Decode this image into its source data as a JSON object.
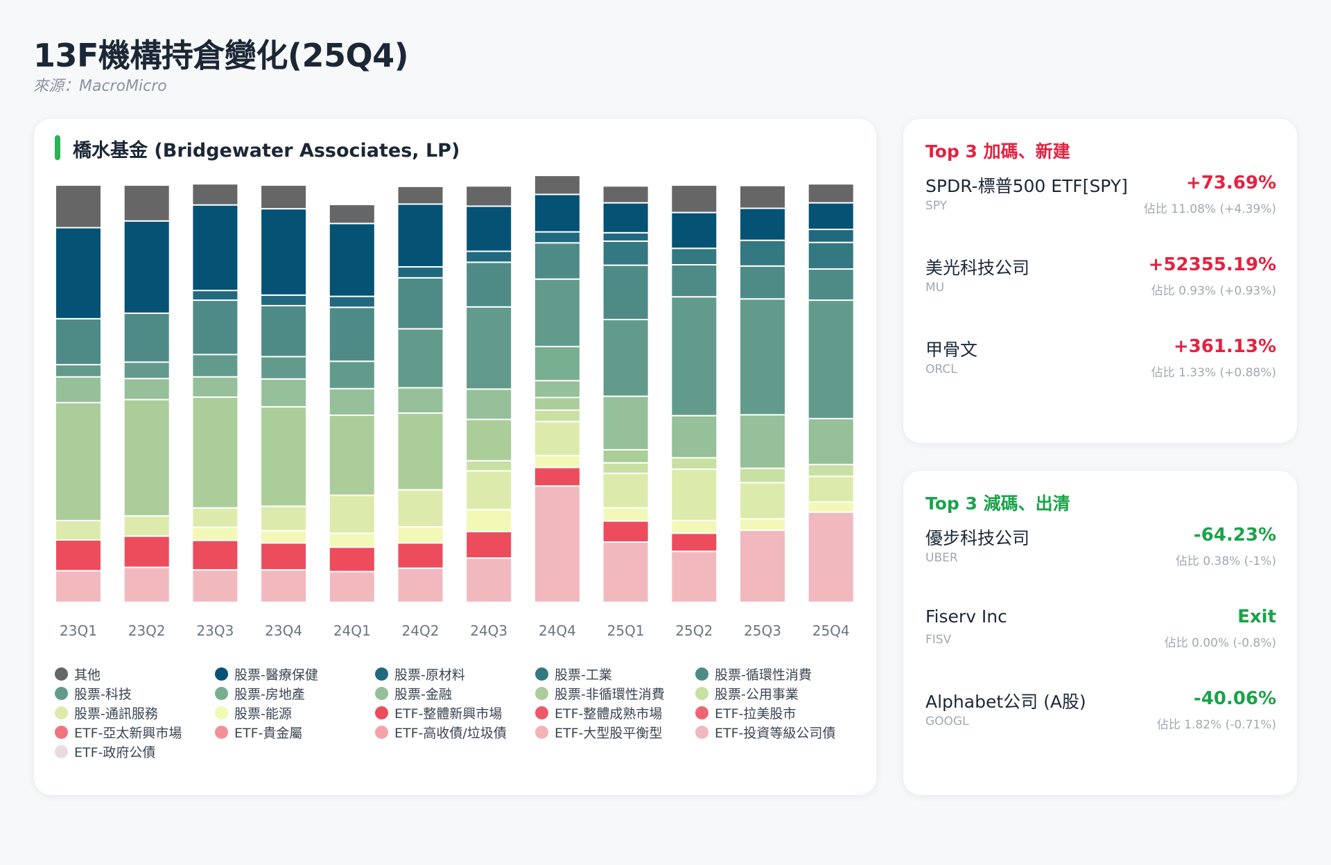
{
  "page": {
    "title": "13F機構持倉變化(25Q4)",
    "source": "來源：MacroMicro"
  },
  "chart_card": {
    "title": "橋水基金 (Bridgewater Associates, LP)",
    "accent_color": "#2bb35a"
  },
  "chart_data": {
    "type": "bar",
    "stacked": true,
    "normalized_to": 100,
    "categories": [
      "23Q1",
      "23Q2",
      "23Q3",
      "23Q4",
      "24Q1",
      "24Q2",
      "24Q3",
      "24Q4",
      "25Q1",
      "25Q2",
      "25Q3",
      "25Q4"
    ],
    "ylim": [
      0,
      100
    ],
    "grid": false,
    "legend_position": "bottom",
    "series": [
      {
        "name": "ETF-政府公債",
        "color": "#eadcde",
        "values": [
          0,
          0,
          0,
          0,
          0,
          0,
          0,
          0,
          0,
          0,
          0,
          0
        ]
      },
      {
        "name": "ETF-投資等級公司債",
        "color": "#f1b9be",
        "values": [
          7.5,
          8.3,
          7.7,
          7.7,
          7.3,
          8.1,
          10.5,
          27.6,
          14.3,
          12.1,
          17.1,
          21.4
        ]
      },
      {
        "name": "ETF-大型股平衡型",
        "color": "#f2b3b8",
        "values": [
          0,
          0,
          0,
          0,
          0,
          0,
          0,
          0,
          0,
          0,
          0,
          0
        ]
      },
      {
        "name": "ETF-高收債/垃圾債",
        "color": "#f4a3ab",
        "values": [
          0,
          0,
          0,
          0,
          0,
          0,
          0,
          0,
          0,
          0,
          0,
          0
        ]
      },
      {
        "name": "ETF-貴金屬",
        "color": "#f29098",
        "values": [
          0,
          0,
          0,
          0,
          0,
          0,
          0,
          0,
          0,
          0,
          0,
          0
        ]
      },
      {
        "name": "ETF-亞太新興市場",
        "color": "#f07480",
        "values": [
          0,
          0,
          0,
          0,
          0,
          0,
          0,
          0,
          0,
          0,
          0,
          0
        ]
      },
      {
        "name": "ETF-拉美股市",
        "color": "#ef6472",
        "values": [
          0,
          0,
          0,
          0,
          0,
          0,
          0,
          0,
          0,
          0,
          0,
          0
        ]
      },
      {
        "name": "ETF-整體成熟市場",
        "color": "#ed5966",
        "values": [
          0,
          0,
          0,
          0,
          0,
          0,
          0,
          0,
          0,
          0,
          0,
          0
        ]
      },
      {
        "name": "ETF-整體新興市場",
        "color": "#ec4c5c",
        "values": [
          7.3,
          7.4,
          7.0,
          6.4,
          5.8,
          6.0,
          6.3,
          4.4,
          5.0,
          4.3,
          0,
          0
        ]
      },
      {
        "name": "股票-能源",
        "color": "#f2f8b6",
        "values": [
          0,
          0,
          3.1,
          2.9,
          3.3,
          3.8,
          5.2,
          2.8,
          3.1,
          3.0,
          2.7,
          2.4
        ]
      },
      {
        "name": "股票-通訊服務",
        "color": "#dcebab",
        "values": [
          4.6,
          4.8,
          4.6,
          5.8,
          9.0,
          8.8,
          9.2,
          8.1,
          8.2,
          12.2,
          8.6,
          6.1
        ]
      },
      {
        "name": "股票-公用事業",
        "color": "#c8e0a2",
        "values": [
          0,
          0,
          0,
          0,
          0,
          0,
          2.4,
          2.7,
          2.5,
          2.7,
          3.4,
          2.8
        ]
      },
      {
        "name": "股票-非循環性消費",
        "color": "#abcd9a",
        "values": [
          28.0,
          27.6,
          26.3,
          23.6,
          19.0,
          18.2,
          9.8,
          3.0,
          3.1,
          0,
          0,
          0
        ]
      },
      {
        "name": "股票-金融",
        "color": "#95c099",
        "values": [
          6.1,
          5.0,
          4.8,
          6.6,
          6.3,
          6.0,
          7.2,
          4.0,
          12.7,
          10.0,
          12.7,
          10.9
        ]
      },
      {
        "name": "股票-房地產",
        "color": "#79af91",
        "values": [
          0,
          0,
          0,
          0,
          0,
          0,
          0,
          8.1,
          0,
          0,
          0,
          0
        ]
      },
      {
        "name": "股票-科技",
        "color": "#629b8c",
        "values": [
          2.9,
          3.9,
          5.3,
          5.3,
          6.5,
          14.0,
          19.5,
          16.0,
          18.2,
          28.2,
          27.5,
          28.1
        ]
      },
      {
        "name": "股票-循環性消費",
        "color": "#4e8b87",
        "values": [
          10.9,
          11.6,
          12.9,
          12.1,
          12.8,
          12.1,
          10.6,
          8.6,
          12.9,
          7.6,
          7.8,
          7.4
        ]
      },
      {
        "name": "股票-工業",
        "color": "#347882",
        "values": [
          0,
          0,
          0,
          0,
          0,
          0,
          0,
          0,
          5.7,
          3.9,
          6.1,
          6.3
        ]
      },
      {
        "name": "股票-原材料",
        "color": "#21697f",
        "values": [
          0,
          0,
          2.3,
          2.5,
          2.6,
          2.6,
          2.6,
          2.6,
          2.0,
          0,
          0,
          3.1
        ]
      },
      {
        "name": "股票-醫療保健",
        "color": "#055275",
        "values": [
          21.6,
          21.9,
          20.3,
          20.5,
          17.3,
          14.9,
          10.7,
          8.9,
          7.1,
          8.5,
          7.6,
          6.3
        ]
      },
      {
        "name": "其他",
        "color": "#666666",
        "values": [
          10.1,
          8.5,
          5.0,
          5.6,
          4.5,
          4.2,
          4.8,
          4.5,
          4.0,
          6.5,
          5.4,
          4.5
        ]
      }
    ]
  },
  "legend_order": [
    "其他",
    "股票-醫療保健",
    "股票-原材料",
    "股票-工業",
    "股票-循環性消費",
    "股票-科技",
    "股票-房地產",
    "股票-金融",
    "股票-非循環性消費",
    "股票-公用事業",
    "股票-通訊服務",
    "股票-能源",
    "ETF-整體新興市場",
    "ETF-整體成熟市場",
    "ETF-拉美股市",
    "ETF-亞太新興市場",
    "ETF-貴金屬",
    "ETF-高收債/垃圾債",
    "ETF-大型股平衡型",
    "ETF-投資等級公司債",
    "ETF-政府公債"
  ],
  "top_increase": {
    "title": "Top 3 加碼、新建",
    "color": "#e5213f",
    "items": [
      {
        "name": "SPDR-標普500 ETF[SPY]",
        "ticker": "SPY",
        "change": "+73.69%",
        "share": "佔比 11.08% (+4.39%)"
      },
      {
        "name": "美光科技公司",
        "ticker": "MU",
        "change": "+52355.19%",
        "share": "佔比 0.93% (+0.93%)"
      },
      {
        "name": "甲骨文",
        "ticker": "ORCL",
        "change": "+361.13%",
        "share": "佔比 1.33% (+0.88%)"
      }
    ]
  },
  "top_decrease": {
    "title": "Top 3 減碼、出清",
    "color": "#1aa34a",
    "items": [
      {
        "name": "優步科技公司",
        "ticker": "UBER",
        "change": "-64.23%",
        "share": "佔比 0.38% (-1%)"
      },
      {
        "name": "Fiserv Inc",
        "ticker": "FISV",
        "change": "Exit",
        "share": "佔比 0.00% (-0.8%)"
      },
      {
        "name": "Alphabet公司 (A股)",
        "ticker": "GOOGL",
        "change": "-40.06%",
        "share": "佔比 1.82% (-0.71%)"
      }
    ]
  }
}
